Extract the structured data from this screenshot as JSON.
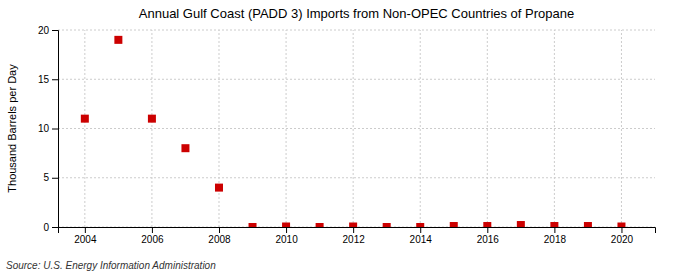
{
  "chart_data": {
    "type": "scatter",
    "title": "Annual Gulf Coast (PADD 3) Imports from Non-OPEC Countries of Propane",
    "ylabel": "Thousand Barrels per Day",
    "source": "Source: U.S. Energy Information Administration",
    "x": [
      2004,
      2005,
      2006,
      2007,
      2008,
      2009,
      2010,
      2011,
      2012,
      2013,
      2014,
      2015,
      2016,
      2017,
      2018,
      2019,
      2020
    ],
    "values": [
      11.0,
      19.0,
      11.0,
      8.0,
      4.0,
      0.0,
      0.05,
      0.0,
      0.05,
      0.0,
      0.0,
      0.1,
      0.1,
      0.2,
      0.1,
      0.1,
      0.05
    ],
    "color": "#cc0000",
    "marker": "square",
    "xlim": [
      2003.2,
      2021.0
    ],
    "ylim": [
      0,
      20
    ],
    "xticks": [
      2004,
      2006,
      2008,
      2010,
      2012,
      2014,
      2016,
      2018,
      2020
    ],
    "yticks": [
      0,
      5,
      10,
      15,
      20
    ],
    "grid": true
  }
}
